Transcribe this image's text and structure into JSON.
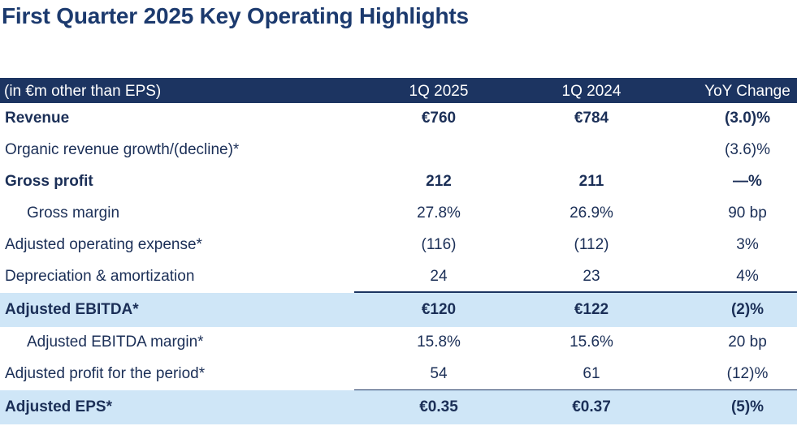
{
  "title": "First Quarter 2025 Key Operating Highlights",
  "header": {
    "label": "(in €m other than EPS)",
    "q2025": "1Q 2025",
    "q2024": "1Q 2024",
    "yoy": "YoY Change"
  },
  "rows": [
    {
      "label": "Revenue",
      "q2025": "€760",
      "q2024": "€784",
      "yoy": "(3.0)%"
    },
    {
      "label": "Organic revenue growth/(decline)*",
      "q2025": "",
      "q2024": "",
      "yoy": "(3.6)%"
    },
    {
      "label": "Gross profit",
      "q2025": "212",
      "q2024": "211",
      "yoy": "—%"
    },
    {
      "label": "Gross margin",
      "q2025": "27.8%",
      "q2024": "26.9%",
      "yoy": "90 bp"
    },
    {
      "label": "Adjusted operating expense*",
      "q2025": "(116)",
      "q2024": "(112)",
      "yoy": "3%"
    },
    {
      "label": "Depreciation & amortization",
      "q2025": "24",
      "q2024": "23",
      "yoy": "4%"
    },
    {
      "label": "Adjusted EBITDA*",
      "q2025": "€120",
      "q2024": "€122",
      "yoy": "(2)%"
    },
    {
      "label": "Adjusted EBITDA margin*",
      "q2025": "15.8%",
      "q2024": "15.6%",
      "yoy": "20 bp"
    },
    {
      "label": "Adjusted profit for the period*",
      "q2025": "54",
      "q2024": "61",
      "yoy": "(12)%"
    },
    {
      "label": "Adjusted EPS*",
      "q2025": "€0.35",
      "q2024": "€0.37",
      "yoy": "(5)%"
    }
  ],
  "colors": {
    "header_bg": "#1c3461",
    "highlight_bg": "#cfe6f7",
    "text": "#1b2f57",
    "title": "#1c3a6e"
  }
}
